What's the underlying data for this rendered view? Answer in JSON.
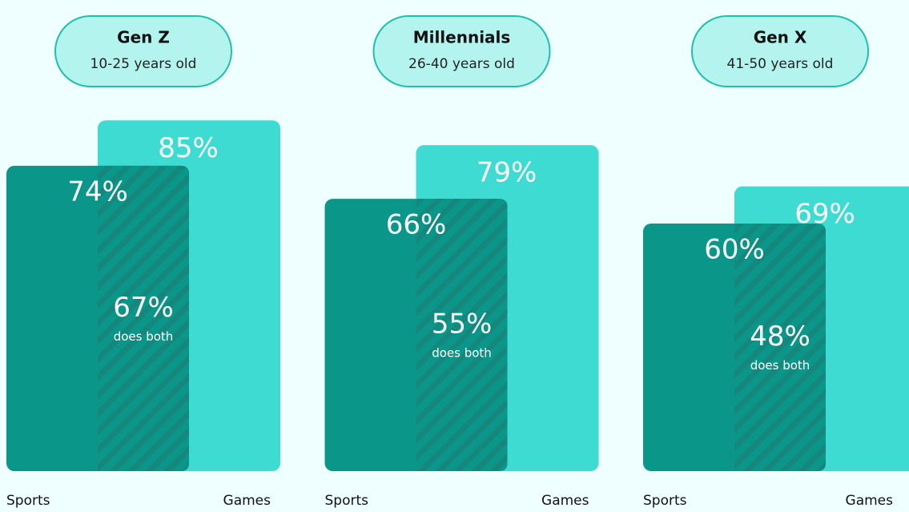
{
  "chart_data": [
    {
      "type": "overlap-bar",
      "title": "Gen Z",
      "subtitle": "10-25 years old",
      "categories": [
        "Sports",
        "Games"
      ],
      "values": [
        74,
        85
      ],
      "value_labels": [
        "74%",
        "85%"
      ],
      "overlap": 67,
      "overlap_label": "67%",
      "overlap_note": "does both",
      "colors": [
        "#0a978a",
        "#3ddbd1"
      ]
    },
    {
      "type": "overlap-bar",
      "title": "Millennials",
      "subtitle": "26-40 years old",
      "categories": [
        "Sports",
        "Games"
      ],
      "values": [
        66,
        79
      ],
      "value_labels": [
        "66%",
        "79%"
      ],
      "overlap": 55,
      "overlap_label": "55%",
      "overlap_note": "does both",
      "colors": [
        "#0a978a",
        "#3ddbd1"
      ]
    },
    {
      "type": "overlap-bar",
      "title": "Gen X",
      "subtitle": "41-50 years old",
      "categories": [
        "Sports",
        "Games"
      ],
      "values": [
        60,
        69
      ],
      "value_labels": [
        "60%",
        "69%"
      ],
      "overlap": 48,
      "overlap_label": "48%",
      "overlap_note": "does both",
      "colors": [
        "#0a978a",
        "#3ddbd1"
      ]
    }
  ]
}
